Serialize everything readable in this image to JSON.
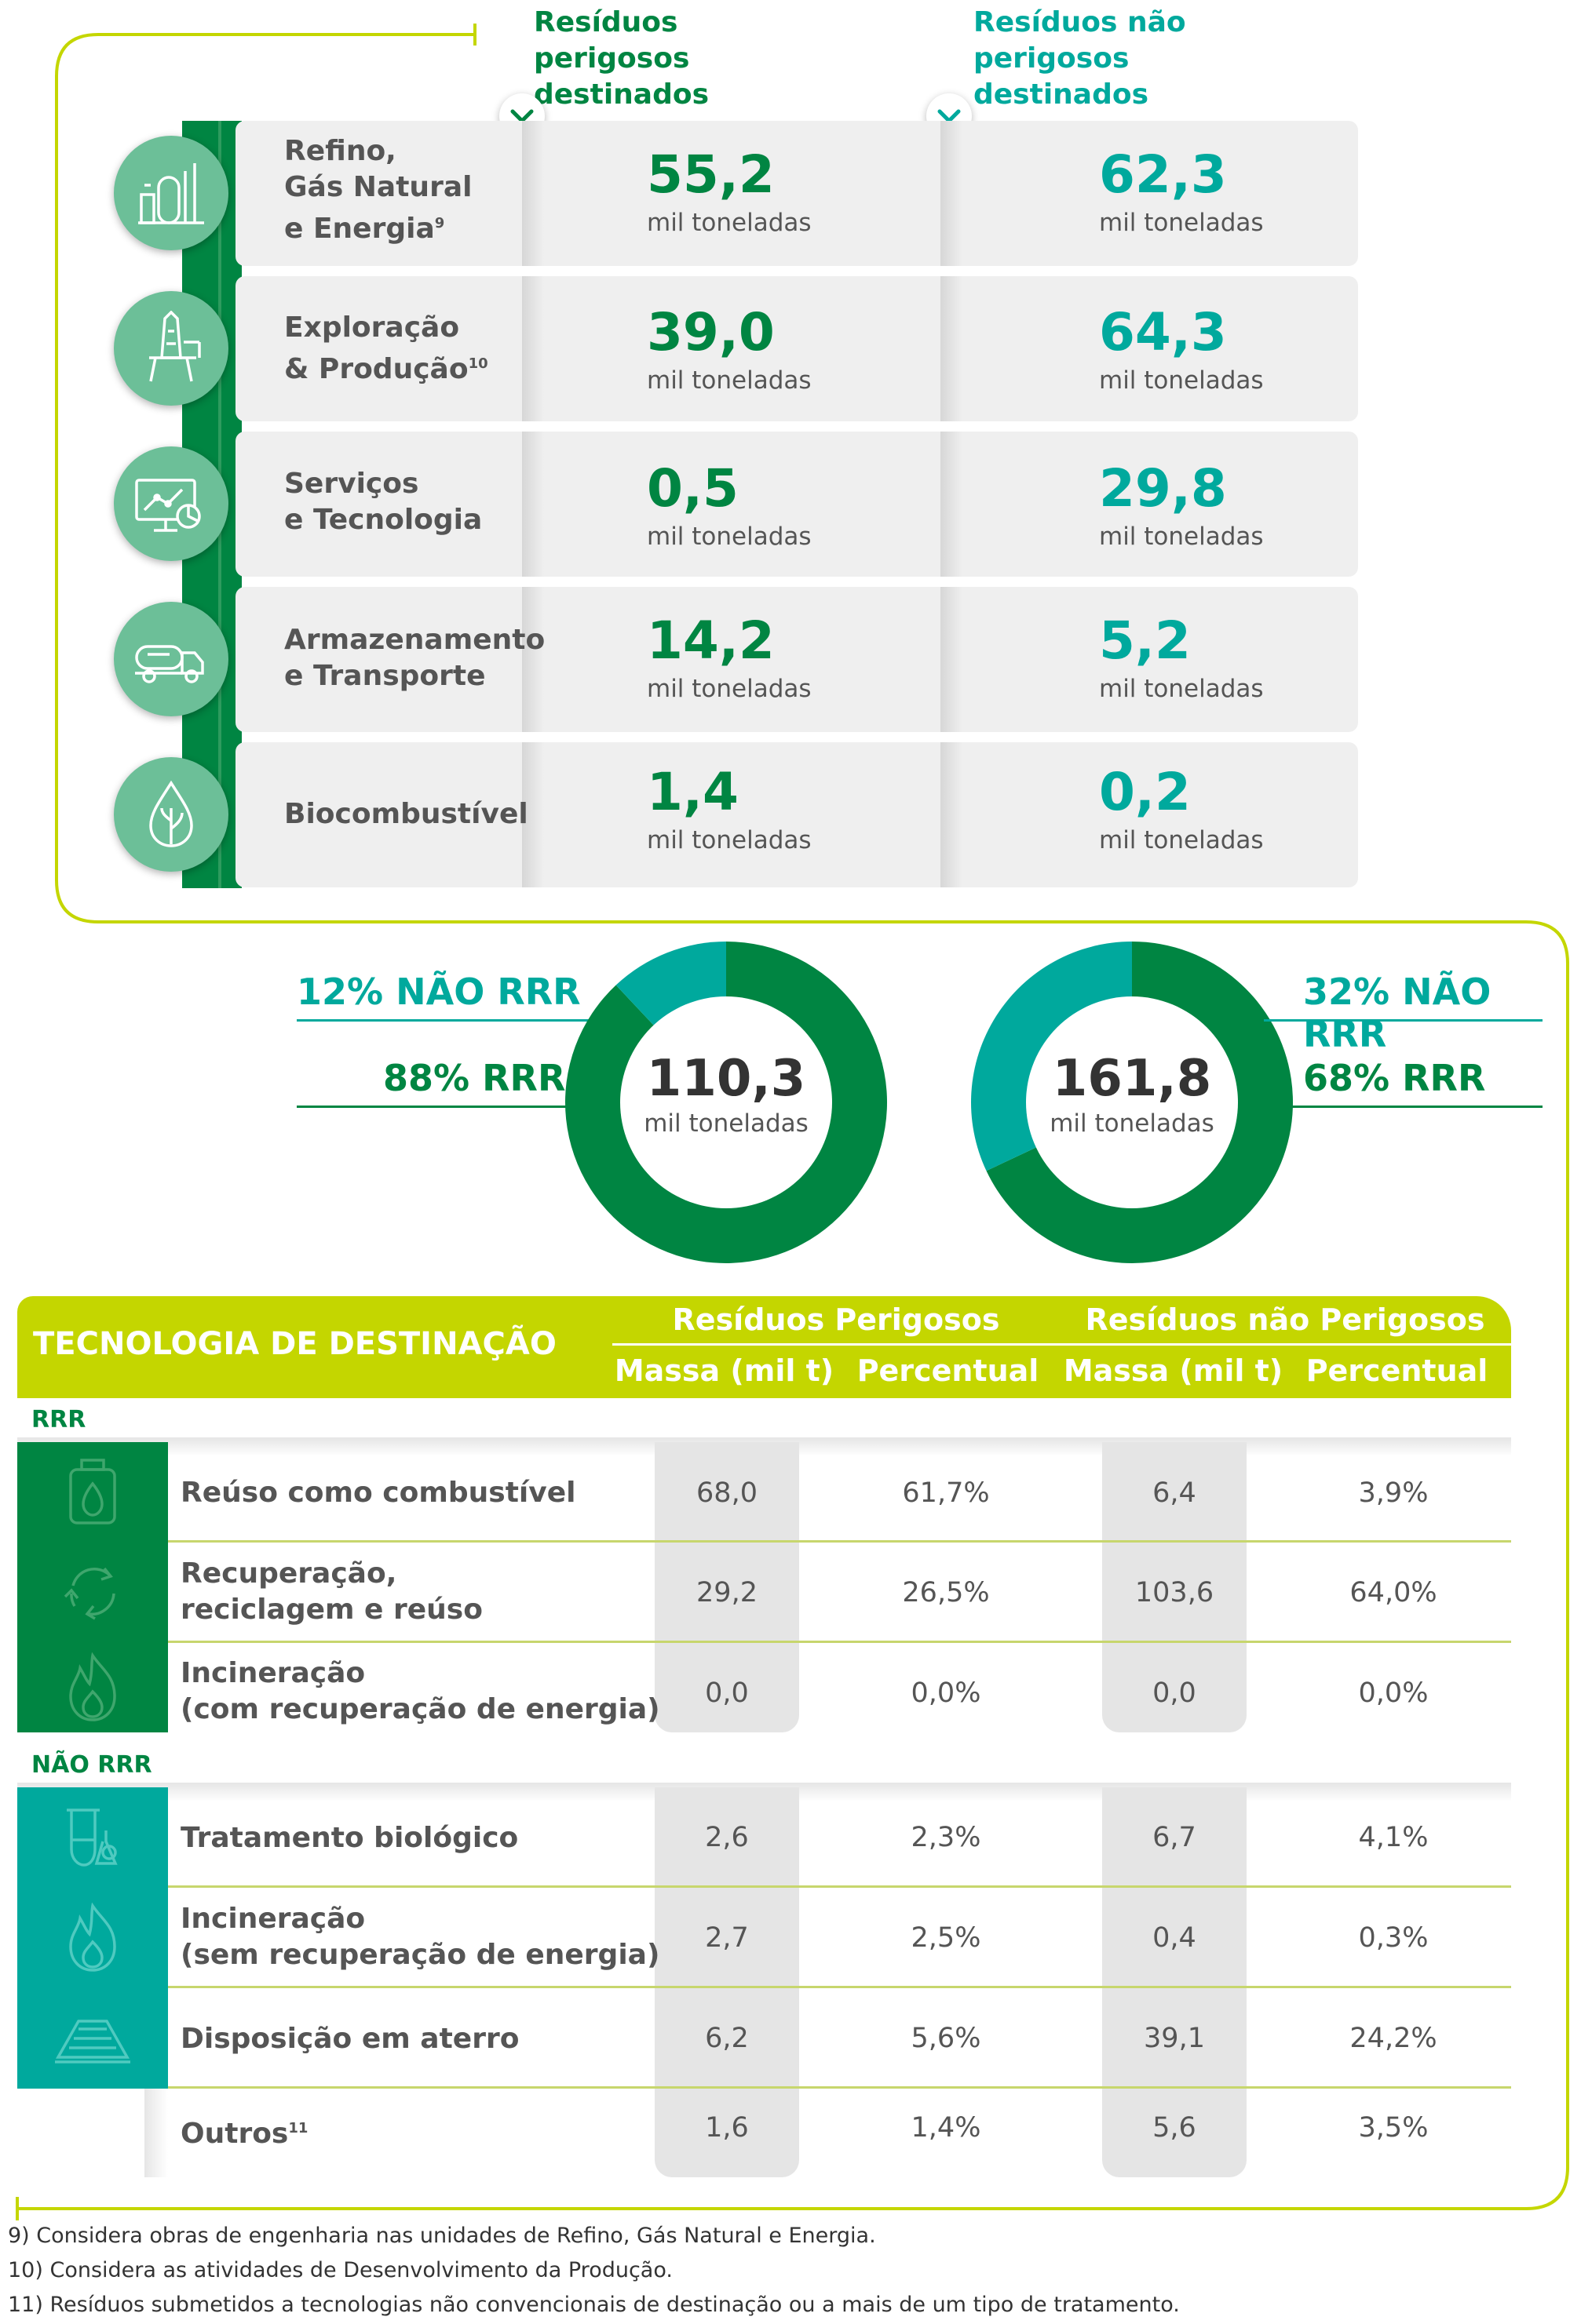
{
  "headers": {
    "hazardous": "Resíduos perigosos destinados",
    "non_hazardous": "Resíduos não perigosos destinados"
  },
  "unit": "mil toneladas",
  "segments": [
    {
      "label_l1": "Refino,",
      "label_l2": "Gás Natural",
      "label_l3": "e Energia",
      "sup": "9",
      "icon": "refinery-icon",
      "hazardous": "55,2",
      "non_hazardous": "62,3"
    },
    {
      "label_l1": "Exploração",
      "label_l2": "& Produção",
      "label_l3": "",
      "sup": "10",
      "icon": "oil-platform-icon",
      "hazardous": "39,0",
      "non_hazardous": "64,3"
    },
    {
      "label_l1": "Serviços",
      "label_l2": "e Tecnologia",
      "label_l3": "",
      "sup": "",
      "icon": "monitor-chart-icon",
      "hazardous": "0,5",
      "non_hazardous": "29,8"
    },
    {
      "label_l1": "Armazenamento",
      "label_l2": "e Transporte",
      "label_l3": "",
      "sup": "",
      "icon": "tanker-truck-icon",
      "hazardous": "14,2",
      "non_hazardous": "5,2"
    },
    {
      "label_l1": "Biocombustível",
      "label_l2": "",
      "label_l3": "",
      "sup": "",
      "icon": "leaf-drop-icon",
      "hazardous": "1,4",
      "non_hazardous": "0,2"
    }
  ],
  "chart_data": [
    {
      "type": "pie",
      "series_label": "Resíduos perigosos destinados",
      "total": "110,3",
      "unit": "mil toneladas",
      "slices": [
        {
          "label": "RRR",
          "value": 88
        },
        {
          "label": "NÃO RRR",
          "value": 12
        }
      ],
      "labels": {
        "rrr": "88% RRR",
        "nao_rrr": "12% NÃO RRR"
      }
    },
    {
      "type": "pie",
      "series_label": "Resíduos não perigosos destinados",
      "total": "161,8",
      "unit": "mil toneladas",
      "slices": [
        {
          "label": "RRR",
          "value": 68
        },
        {
          "label": "NÃO RRR",
          "value": 32
        }
      ],
      "labels": {
        "rrr": "68% RRR",
        "nao_rrr": "32% NÃO RRR"
      }
    }
  ],
  "colors": {
    "dark_green": "#008542",
    "teal": "#00a99d",
    "lime": "#c4d600",
    "icon_green": "#6cbf98"
  },
  "table": {
    "title": "TECNOLOGIA DE DESTINAÇÃO",
    "group_hazardous": "Resíduos Perigosos",
    "group_non_hazardous": "Resíduos não Perigosos",
    "col_mass": "Massa (mil t)",
    "col_pct": "Percentual",
    "section_rrr": "RRR",
    "section_nao_rrr": "NÃO RRR",
    "rows": [
      {
        "l1": "Reúso como combustível",
        "l2": "",
        "sup": "",
        "icon": "fuel-can-icon",
        "h_mass": "68,0",
        "h_pct": "61,7%",
        "n_mass": "6,4",
        "n_pct": "3,9%"
      },
      {
        "l1": "Recuperação,",
        "l2": "reciclagem e reúso",
        "sup": "",
        "icon": "recycle-icon",
        "h_mass": "29,2",
        "h_pct": "26,5%",
        "n_mass": "103,6",
        "n_pct": "64,0%"
      },
      {
        "l1": "Incineração",
        "l2": "(com recuperação de energia)",
        "sup": "",
        "icon": "flame-icon",
        "h_mass": "0,0",
        "h_pct": "0,0%",
        "n_mass": "0,0",
        "n_pct": "0,0%"
      },
      {
        "l1": "Tratamento biológico",
        "l2": "",
        "sup": "",
        "icon": "lab-flask-icon",
        "h_mass": "2,6",
        "h_pct": "2,3%",
        "n_mass": "6,7",
        "n_pct": "4,1%"
      },
      {
        "l1": "Incineração",
        "l2": "(sem recuperação de energia)",
        "sup": "",
        "icon": "flame-icon",
        "h_mass": "2,7",
        "h_pct": "2,5%",
        "n_mass": "0,4",
        "n_pct": "0,3%"
      },
      {
        "l1": "Disposição em aterro",
        "l2": "",
        "sup": "",
        "icon": "landfill-icon",
        "h_mass": "6,2",
        "h_pct": "5,6%",
        "n_mass": "39,1",
        "n_pct": "24,2%"
      },
      {
        "l1": "Outros",
        "l2": "",
        "sup": "11",
        "icon": "",
        "h_mass": "1,6",
        "h_pct": "1,4%",
        "n_mass": "5,6",
        "n_pct": "3,5%"
      }
    ]
  },
  "footnotes": [
    "9) Considera obras de engenharia nas unidades de Refino, Gás Natural e Energia.",
    "10) Considera as atividades de Desenvolvimento da Produção.",
    "11) Resíduos submetidos a tecnologias não convencionais de destinação ou a mais de um tipo de tratamento."
  ]
}
